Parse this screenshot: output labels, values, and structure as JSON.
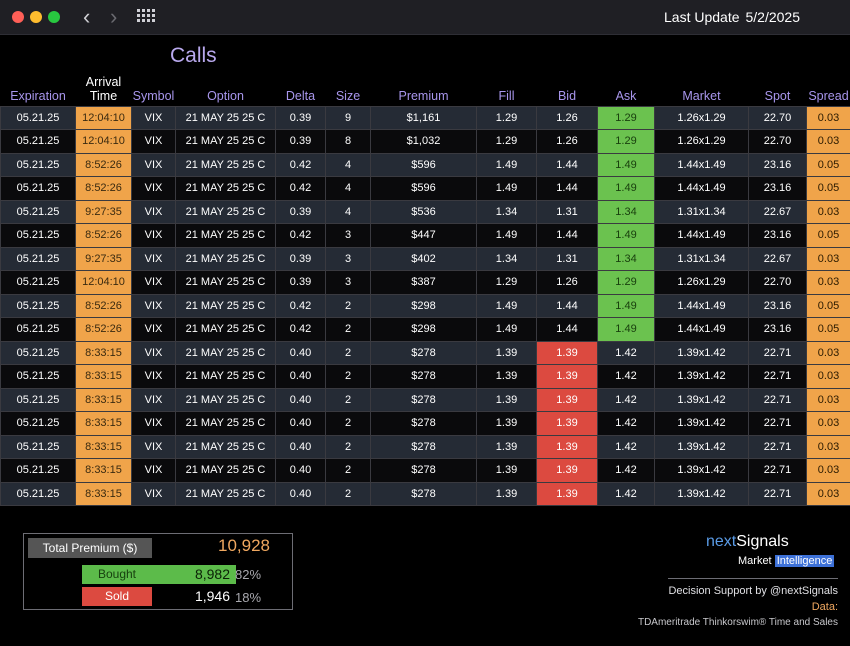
{
  "window": {
    "last_update_label": "Last Update",
    "last_update_date": "5/2/2025"
  },
  "section_title": "Calls",
  "columns": [
    "Expiration",
    "Arrival Time",
    "Symbol",
    "Option",
    "Delta",
    "Size",
    "Premium",
    "Fill",
    "Bid",
    "Ask",
    "Market",
    "Spot",
    "Spread"
  ],
  "arrival_line1": "Arrival",
  "arrival_line2": "Time",
  "rows": [
    {
      "exp": "05.21.25",
      "time": "12:04:10",
      "sym": "VIX",
      "opt": "21 MAY 25 25 C",
      "delta": "0.39",
      "size": "9",
      "prem": "$1,161",
      "fill": "1.29",
      "bid": "1.26",
      "ask": "1.29",
      "market": "1.26x1.29",
      "spot": "22.70",
      "spread": "0.03",
      "side": "ask"
    },
    {
      "exp": "05.21.25",
      "time": "12:04:10",
      "sym": "VIX",
      "opt": "21 MAY 25 25 C",
      "delta": "0.39",
      "size": "8",
      "prem": "$1,032",
      "fill": "1.29",
      "bid": "1.26",
      "ask": "1.29",
      "market": "1.26x1.29",
      "spot": "22.70",
      "spread": "0.03",
      "side": "ask"
    },
    {
      "exp": "05.21.25",
      "time": "8:52:26",
      "sym": "VIX",
      "opt": "21 MAY 25 25 C",
      "delta": "0.42",
      "size": "4",
      "prem": "$596",
      "fill": "1.49",
      "bid": "1.44",
      "ask": "1.49",
      "market": "1.44x1.49",
      "spot": "23.16",
      "spread": "0.05",
      "side": "ask"
    },
    {
      "exp": "05.21.25",
      "time": "8:52:26",
      "sym": "VIX",
      "opt": "21 MAY 25 25 C",
      "delta": "0.42",
      "size": "4",
      "prem": "$596",
      "fill": "1.49",
      "bid": "1.44",
      "ask": "1.49",
      "market": "1.44x1.49",
      "spot": "23.16",
      "spread": "0.05",
      "side": "ask"
    },
    {
      "exp": "05.21.25",
      "time": "9:27:35",
      "sym": "VIX",
      "opt": "21 MAY 25 25 C",
      "delta": "0.39",
      "size": "4",
      "prem": "$536",
      "fill": "1.34",
      "bid": "1.31",
      "ask": "1.34",
      "market": "1.31x1.34",
      "spot": "22.67",
      "spread": "0.03",
      "side": "ask"
    },
    {
      "exp": "05.21.25",
      "time": "8:52:26",
      "sym": "VIX",
      "opt": "21 MAY 25 25 C",
      "delta": "0.42",
      "size": "3",
      "prem": "$447",
      "fill": "1.49",
      "bid": "1.44",
      "ask": "1.49",
      "market": "1.44x1.49",
      "spot": "23.16",
      "spread": "0.05",
      "side": "ask"
    },
    {
      "exp": "05.21.25",
      "time": "9:27:35",
      "sym": "VIX",
      "opt": "21 MAY 25 25 C",
      "delta": "0.39",
      "size": "3",
      "prem": "$402",
      "fill": "1.34",
      "bid": "1.31",
      "ask": "1.34",
      "market": "1.31x1.34",
      "spot": "22.67",
      "spread": "0.03",
      "side": "ask"
    },
    {
      "exp": "05.21.25",
      "time": "12:04:10",
      "sym": "VIX",
      "opt": "21 MAY 25 25 C",
      "delta": "0.39",
      "size": "3",
      "prem": "$387",
      "fill": "1.29",
      "bid": "1.26",
      "ask": "1.29",
      "market": "1.26x1.29",
      "spot": "22.70",
      "spread": "0.03",
      "side": "ask"
    },
    {
      "exp": "05.21.25",
      "time": "8:52:26",
      "sym": "VIX",
      "opt": "21 MAY 25 25 C",
      "delta": "0.42",
      "size": "2",
      "prem": "$298",
      "fill": "1.49",
      "bid": "1.44",
      "ask": "1.49",
      "market": "1.44x1.49",
      "spot": "23.16",
      "spread": "0.05",
      "side": "ask"
    },
    {
      "exp": "05.21.25",
      "time": "8:52:26",
      "sym": "VIX",
      "opt": "21 MAY 25 25 C",
      "delta": "0.42",
      "size": "2",
      "prem": "$298",
      "fill": "1.49",
      "bid": "1.44",
      "ask": "1.49",
      "market": "1.44x1.49",
      "spot": "23.16",
      "spread": "0.05",
      "side": "ask"
    },
    {
      "exp": "05.21.25",
      "time": "8:33:15",
      "sym": "VIX",
      "opt": "21 MAY 25 25 C",
      "delta": "0.40",
      "size": "2",
      "prem": "$278",
      "fill": "1.39",
      "bid": "1.39",
      "ask": "1.42",
      "market": "1.39x1.42",
      "spot": "22.71",
      "spread": "0.03",
      "side": "bid"
    },
    {
      "exp": "05.21.25",
      "time": "8:33:15",
      "sym": "VIX",
      "opt": "21 MAY 25 25 C",
      "delta": "0.40",
      "size": "2",
      "prem": "$278",
      "fill": "1.39",
      "bid": "1.39",
      "ask": "1.42",
      "market": "1.39x1.42",
      "spot": "22.71",
      "spread": "0.03",
      "side": "bid"
    },
    {
      "exp": "05.21.25",
      "time": "8:33:15",
      "sym": "VIX",
      "opt": "21 MAY 25 25 C",
      "delta": "0.40",
      "size": "2",
      "prem": "$278",
      "fill": "1.39",
      "bid": "1.39",
      "ask": "1.42",
      "market": "1.39x1.42",
      "spot": "22.71",
      "spread": "0.03",
      "side": "bid"
    },
    {
      "exp": "05.21.25",
      "time": "8:33:15",
      "sym": "VIX",
      "opt": "21 MAY 25 25 C",
      "delta": "0.40",
      "size": "2",
      "prem": "$278",
      "fill": "1.39",
      "bid": "1.39",
      "ask": "1.42",
      "market": "1.39x1.42",
      "spot": "22.71",
      "spread": "0.03",
      "side": "bid"
    },
    {
      "exp": "05.21.25",
      "time": "8:33:15",
      "sym": "VIX",
      "opt": "21 MAY 25 25 C",
      "delta": "0.40",
      "size": "2",
      "prem": "$278",
      "fill": "1.39",
      "bid": "1.39",
      "ask": "1.42",
      "market": "1.39x1.42",
      "spot": "22.71",
      "spread": "0.03",
      "side": "bid"
    },
    {
      "exp": "05.21.25",
      "time": "8:33:15",
      "sym": "VIX",
      "opt": "21 MAY 25 25 C",
      "delta": "0.40",
      "size": "2",
      "prem": "$278",
      "fill": "1.39",
      "bid": "1.39",
      "ask": "1.42",
      "market": "1.39x1.42",
      "spot": "22.71",
      "spread": "0.03",
      "side": "bid"
    },
    {
      "exp": "05.21.25",
      "time": "8:33:15",
      "sym": "VIX",
      "opt": "21 MAY 25 25 C",
      "delta": "0.40",
      "size": "2",
      "prem": "$278",
      "fill": "1.39",
      "bid": "1.39",
      "ask": "1.42",
      "market": "1.39x1.42",
      "spot": "22.71",
      "spread": "0.03",
      "side": "bid"
    }
  ],
  "summary": {
    "total_label": "Total Premium ($)",
    "total_value": "10,928",
    "bought_label": "Bought",
    "bought_value": "8,982",
    "bought_pct": "82%",
    "bought_fraction": 0.82,
    "sold_label": "Sold",
    "sold_value": "1,946",
    "sold_pct": "18%"
  },
  "branding": {
    "brand_prefix": "next",
    "brand_suffix": "Signals",
    "tagline_prefix": "Market",
    "tagline_highlight": "Intelligence",
    "decision": "Decision Support by @nextSignals",
    "data_label": "Data:",
    "source": "TDAmeritrade Thinkorswim® Time and Sales"
  },
  "colors": {
    "accent_header": "#a896ec",
    "time_cell": "#f0a44a",
    "ask_green": "#6bc24f",
    "bid_red": "#dc4a40"
  },
  "icons": [
    "back-chevron-icon",
    "forward-chevron-icon",
    "grid-apps-icon"
  ]
}
